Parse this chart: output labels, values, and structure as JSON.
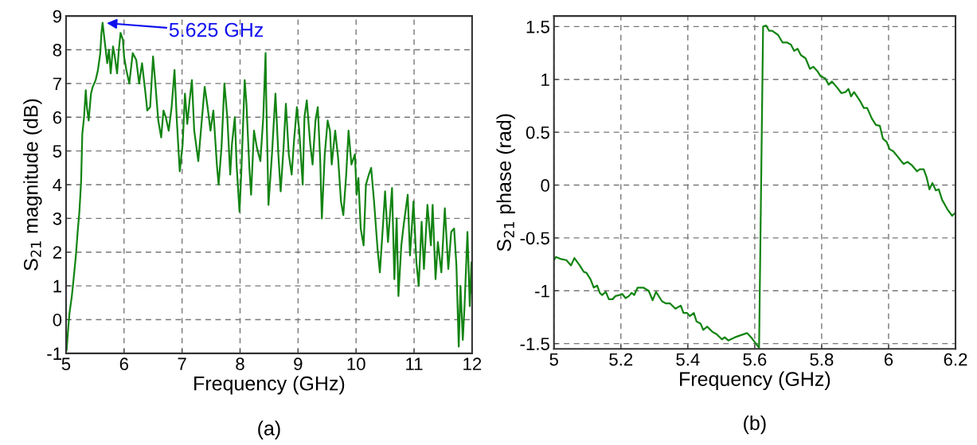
{
  "chart_data": [
    {
      "type": "line",
      "xlabel": "Frequency (GHz)",
      "ylabel": "S$_{21}$ magnitude (dB)",
      "xlim": [
        5,
        12
      ],
      "ylim": [
        -1,
        9
      ],
      "xticks": [
        5,
        6,
        7,
        8,
        9,
        10,
        11,
        12
      ],
      "yticks": [
        -1,
        0,
        1,
        2,
        3,
        4,
        5,
        6,
        7,
        8,
        9
      ],
      "grid": true,
      "line_style": "solid",
      "marker": "none",
      "annotations": [
        {
          "text": "5.625 GHz",
          "x": 5.625,
          "y": 8.8
        },
        "(a)"
      ],
      "series": [
        {
          "color": "#138413",
          "x": [
            5.01,
            5.04,
            5.06,
            5.1,
            5.13,
            5.17,
            5.2,
            5.23,
            5.26,
            5.28,
            5.31,
            5.34,
            5.36,
            5.39,
            5.43,
            5.46,
            5.51,
            5.55,
            5.59,
            5.61,
            5.63,
            5.67,
            5.71,
            5.74,
            5.77,
            5.81,
            5.84,
            5.88,
            5.91,
            5.94,
            5.98,
            6.0,
            6.04,
            6.09,
            6.15,
            6.21,
            6.26,
            6.31,
            6.37,
            6.4,
            6.45,
            6.5,
            6.53,
            6.59,
            6.64,
            6.68,
            6.72,
            6.77,
            6.82,
            6.87,
            6.91,
            6.96,
            7.01,
            7.05,
            7.09,
            7.13,
            7.17,
            7.21,
            7.28,
            7.33,
            7.39,
            7.44,
            7.49,
            7.54,
            7.6,
            7.63,
            7.68,
            7.73,
            7.78,
            7.83,
            7.86,
            7.91,
            7.94,
            7.99,
            8.02,
            8.08,
            8.11,
            8.16,
            8.19,
            8.24,
            8.29,
            8.35,
            8.4,
            8.44,
            8.45,
            8.49,
            8.55,
            8.61,
            8.66,
            8.7,
            8.75,
            8.79,
            8.84,
            8.89,
            8.93,
            8.98,
            9.02,
            9.08,
            9.11,
            9.15,
            9.21,
            9.25,
            9.3,
            9.34,
            9.38,
            9.41,
            9.46,
            9.51,
            9.55,
            9.58,
            9.64,
            9.69,
            9.74,
            9.78,
            9.83,
            9.87,
            9.92,
            9.98,
            10.01,
            10.04,
            10.08,
            10.13,
            10.17,
            10.22,
            10.26,
            10.31,
            10.37,
            10.41,
            10.46,
            10.5,
            10.55,
            10.62,
            10.66,
            10.7,
            10.73,
            10.78,
            10.82,
            10.89,
            10.93,
            10.99,
            11.04,
            11.08,
            11.13,
            11.17,
            11.23,
            11.29,
            11.32,
            11.37,
            11.41,
            11.47,
            11.53,
            11.59,
            11.64,
            11.69,
            11.73,
            11.77,
            11.8,
            11.84,
            11.87,
            11.92,
            11.96,
            11.99,
            12.0
          ],
          "values": [
            -0.9,
            -0.2,
            0.2,
            0.7,
            1.2,
            1.9,
            2.6,
            3.2,
            4.1,
            5.5,
            6.0,
            6.8,
            6.3,
            5.9,
            6.7,
            6.9,
            7.1,
            7.4,
            7.9,
            8.5,
            8.8,
            8.2,
            7.6,
            8.0,
            7.3,
            8.1,
            7.8,
            7.3,
            8.0,
            8.5,
            8.3,
            7.8,
            7.4,
            7.0,
            7.9,
            7.7,
            7.0,
            7.6,
            6.7,
            6.2,
            6.3,
            7.8,
            7.2,
            5.9,
            5.4,
            6.2,
            6.0,
            5.6,
            6.3,
            7.4,
            5.9,
            4.4,
            5.2,
            6.7,
            5.8,
            6.5,
            7.1,
            5.6,
            4.7,
            5.7,
            6.9,
            6.3,
            5.6,
            6.2,
            4.6,
            4.0,
            5.1,
            7.0,
            6.0,
            4.3,
            5.2,
            6.0,
            4.6,
            3.2,
            4.3,
            7.1,
            6.4,
            4.5,
            3.7,
            5.6,
            5.1,
            4.7,
            6.0,
            7.9,
            6.7,
            3.4,
            4.9,
            6.7,
            4.9,
            3.8,
            5.1,
            6.4,
            4.9,
            4.3,
            5.3,
            6.3,
            5.6,
            4.0,
            6.0,
            6.5,
            5.2,
            4.6,
            5.9,
            6.3,
            4.8,
            3.0,
            4.9,
            5.9,
            5.6,
            4.6,
            5.6,
            4.8,
            3.5,
            3.1,
            4.3,
            5.6,
            4.6,
            4.9,
            3.7,
            4.2,
            2.7,
            2.2,
            4.0,
            4.3,
            4.5,
            3.5,
            2.1,
            1.4,
            2.7,
            3.8,
            2.3,
            3.9,
            1.2,
            3.0,
            0.7,
            2.2,
            2.8,
            3.7,
            1.9,
            3.5,
            1.7,
            1.0,
            2.9,
            1.5,
            3.4,
            2.2,
            3.4,
            1.2,
            2.3,
            1.4,
            3.3,
            1.5,
            2.6,
            2.7,
            1.6,
            -0.8,
            1.0,
            -0.6,
            0.4,
            2.6,
            0.4,
            1.7,
            0.8
          ]
        }
      ]
    },
    {
      "type": "line",
      "xlabel": "Frequency (GHz)",
      "ylabel": "S$_{21}$ phase (rad)",
      "xlim": [
        5,
        6.2
      ],
      "ylim": [
        -1.55,
        1.6
      ],
      "xticks": [
        5,
        5.2,
        5.4,
        5.6,
        5.8,
        6,
        6.2
      ],
      "yticks": [
        -1.5,
        -1,
        -0.5,
        0,
        0.5,
        1,
        1.5
      ],
      "grid": true,
      "line_style": "solid",
      "marker": "none",
      "annotations": [
        "(b)"
      ],
      "series": [
        {
          "color": "#138413",
          "x": [
            5.0,
            5.006,
            5.021,
            5.037,
            5.051,
            5.061,
            5.077,
            5.089,
            5.097,
            5.109,
            5.119,
            5.129,
            5.137,
            5.144,
            5.155,
            5.164,
            5.175,
            5.184,
            5.196,
            5.204,
            5.214,
            5.224,
            5.232,
            5.24,
            5.25,
            5.267,
            5.283,
            5.295,
            5.305,
            5.323,
            5.335,
            5.347,
            5.363,
            5.379,
            5.387,
            5.398,
            5.406,
            5.418,
            5.426,
            5.438,
            5.446,
            5.458,
            5.474,
            5.486,
            5.502,
            5.51,
            5.521,
            5.541,
            5.577,
            5.589,
            5.613,
            5.625,
            5.634,
            5.643,
            5.652,
            5.67,
            5.683,
            5.696,
            5.708,
            5.718,
            5.728,
            5.738,
            5.752,
            5.765,
            5.775,
            5.787,
            5.797,
            5.811,
            5.821,
            5.831,
            5.847,
            5.859,
            5.871,
            5.88,
            5.888,
            5.897,
            5.914,
            5.926,
            5.936,
            5.95,
            5.962,
            5.974,
            5.983,
            5.994,
            6.003,
            6.014,
            6.027,
            6.037,
            6.045,
            6.057,
            6.069,
            6.085,
            6.093,
            6.105,
            6.114,
            6.122,
            6.131,
            6.141,
            6.15,
            6.16,
            6.176,
            6.19,
            6.2
          ],
          "values": [
            -0.71,
            -0.68,
            -0.7,
            -0.71,
            -0.76,
            -0.69,
            -0.76,
            -0.82,
            -0.83,
            -0.89,
            -0.97,
            -0.95,
            -1.02,
            -1.04,
            -1.01,
            -1.08,
            -1.08,
            -1.05,
            -1.04,
            -1.03,
            -1.07,
            -1.05,
            -1.02,
            -1.04,
            -0.97,
            -0.97,
            -1.0,
            -1.09,
            -1.01,
            -1.1,
            -1.12,
            -1.12,
            -1.17,
            -1.14,
            -1.21,
            -1.21,
            -1.24,
            -1.21,
            -1.29,
            -1.31,
            -1.37,
            -1.34,
            -1.39,
            -1.41,
            -1.46,
            -1.44,
            -1.47,
            -1.44,
            -1.4,
            -1.44,
            -1.54,
            1.5,
            1.51,
            1.46,
            1.46,
            1.42,
            1.35,
            1.35,
            1.33,
            1.27,
            1.29,
            1.23,
            1.2,
            1.1,
            1.12,
            1.08,
            1.03,
            1.01,
            0.95,
            0.98,
            0.92,
            0.87,
            0.88,
            0.91,
            0.84,
            0.88,
            0.8,
            0.73,
            0.73,
            0.63,
            0.57,
            0.56,
            0.44,
            0.41,
            0.34,
            0.32,
            0.27,
            0.23,
            0.2,
            0.22,
            0.19,
            0.13,
            0.15,
            0.15,
            0.07,
            -0.04,
            0.02,
            -0.05,
            -0.04,
            -0.14,
            -0.23,
            -0.29,
            -0.26
          ]
        }
      ]
    }
  ]
}
